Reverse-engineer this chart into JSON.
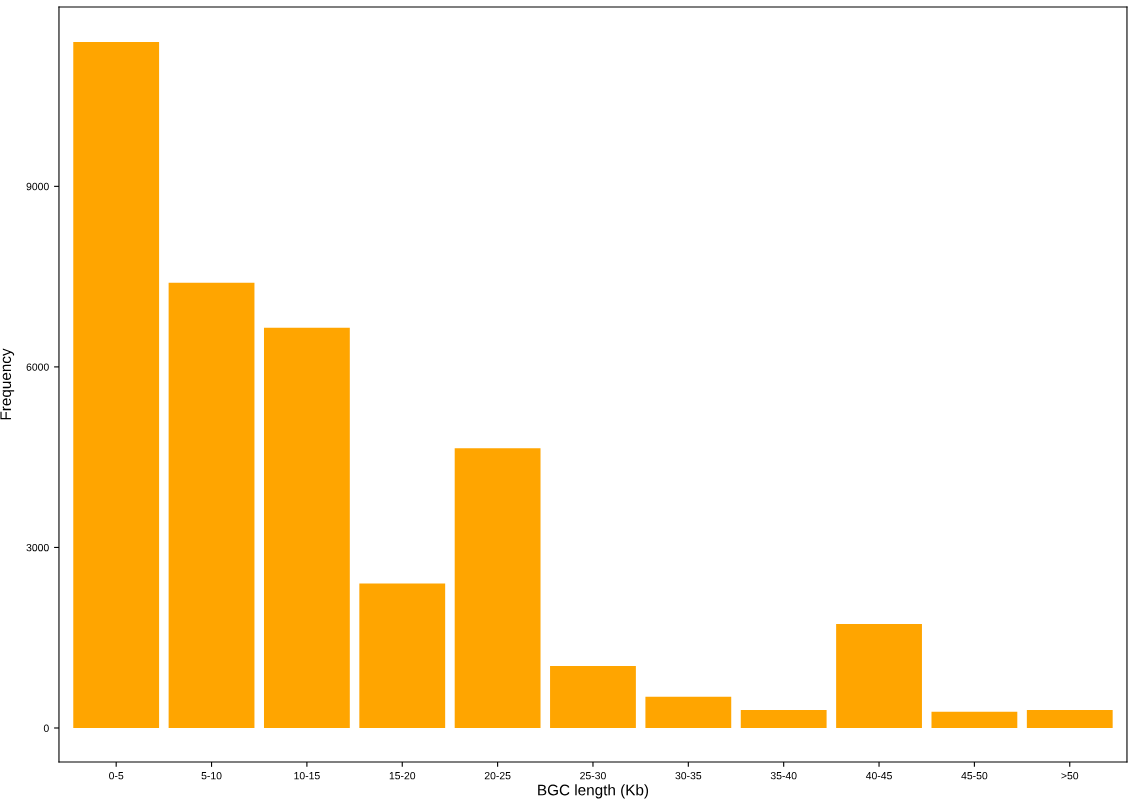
{
  "chart_data": {
    "type": "bar",
    "xlabel": "BGC length (Kb)",
    "ylabel": "Frequency",
    "categories": [
      "0-5",
      "5-10",
      "10-15",
      "15-20",
      "20-25",
      "25-30",
      "30-35",
      "35-40",
      "40-45",
      "45-50",
      ">50"
    ],
    "values": [
      11400,
      7400,
      6650,
      2400,
      4650,
      1030,
      520,
      300,
      1730,
      270,
      300
    ],
    "color": "#ffa500",
    "ylim": [
      -565,
      11980
    ],
    "yticks": [
      0,
      3000,
      6000,
      9000
    ],
    "grid": false
  }
}
